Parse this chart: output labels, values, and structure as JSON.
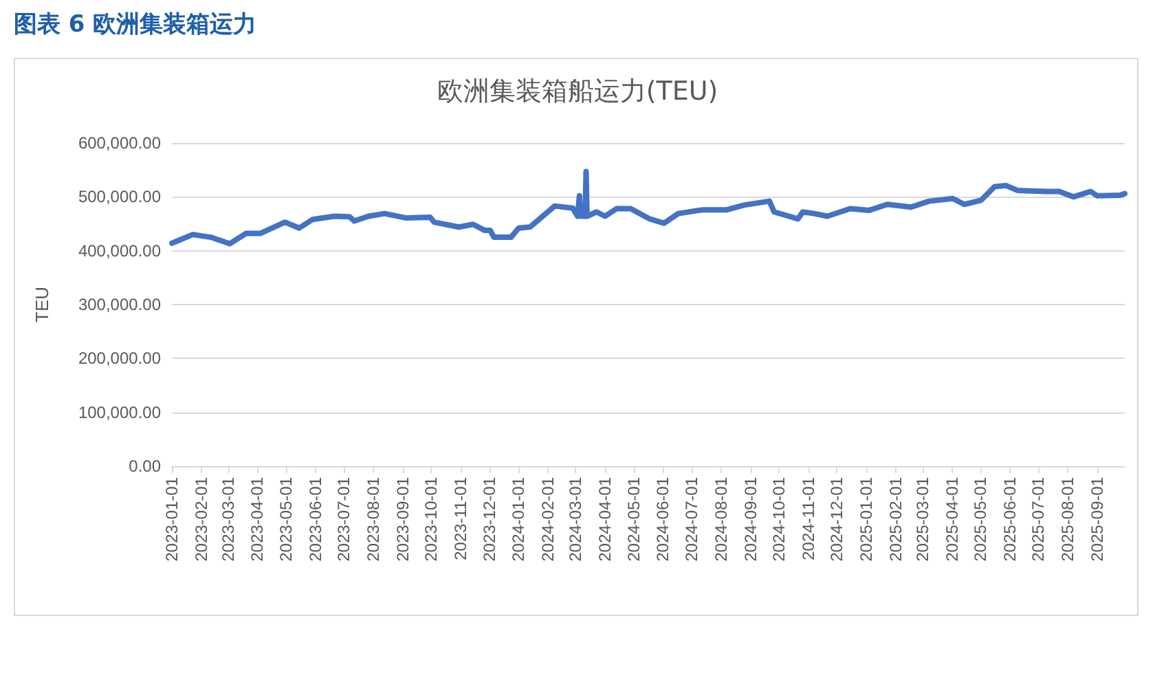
{
  "chart_data": {
    "type": "line",
    "title": "欧洲集装箱船运力(TEU)",
    "ylabel": "TEU",
    "annotations": [
      "图表 6 欧洲集装箱运力"
    ],
    "x": [
      "2023-01-01",
      "2023-01-08",
      "2023-01-23",
      "2023-02-11",
      "2023-03-03",
      "2023-03-20",
      "2023-04-04",
      "2023-04-30",
      "2023-05-15",
      "2023-05-29",
      "2023-06-21",
      "2023-07-07",
      "2023-07-12",
      "2023-07-27",
      "2023-08-13",
      "2023-09-04",
      "2023-09-30",
      "2023-10-04",
      "2023-10-30",
      "2023-11-14",
      "2023-11-26",
      "2023-12-02",
      "2023-12-06",
      "2023-12-24",
      "2024-01-01",
      "2024-01-13",
      "2024-02-08",
      "2024-02-27",
      "2024-03-03",
      "2024-03-05",
      "2024-03-06",
      "2024-03-11",
      "2024-03-12",
      "2024-03-13",
      "2024-03-23",
      "2024-04-01",
      "2024-04-13",
      "2024-04-28",
      "2024-05-18",
      "2024-06-02",
      "2024-06-17",
      "2024-07-13",
      "2024-08-07",
      "2024-08-26",
      "2024-09-21",
      "2024-09-26",
      "2024-10-21",
      "2024-10-26",
      "2024-11-07",
      "2024-11-21",
      "2024-12-15",
      "2025-01-04",
      "2025-01-23",
      "2025-02-17",
      "2025-03-08",
      "2025-04-02",
      "2025-04-14",
      "2025-05-02",
      "2025-05-16",
      "2025-05-28",
      "2025-06-09",
      "2025-07-09",
      "2025-07-23",
      "2025-08-07",
      "2025-08-25",
      "2025-09-01",
      "2025-09-25",
      "2025-09-30"
    ],
    "series": [
      {
        "color": "#4472c4",
        "values": [
          414000,
          419000,
          430000,
          425000,
          413000,
          432000,
          432000,
          453000,
          442000,
          458000,
          464000,
          463000,
          455000,
          464000,
          469000,
          461000,
          462000,
          453000,
          444000,
          449000,
          438000,
          438000,
          425000,
          425000,
          442000,
          444000,
          483000,
          479000,
          464000,
          502000,
          464000,
          464000,
          547000,
          464000,
          472000,
          464000,
          478000,
          478000,
          459000,
          451000,
          469000,
          476000,
          476000,
          485000,
          492000,
          472000,
          459000,
          472000,
          469000,
          464000,
          478000,
          475000,
          486000,
          481000,
          492000,
          497000,
          486000,
          494000,
          519000,
          521000,
          512000,
          510000,
          510000,
          500000,
          510000,
          502000,
          503000,
          506000
        ]
      }
    ],
    "xlim": [
      "2023-01-01",
      "2025-09-30"
    ],
    "xticks": [
      "2023-01-01",
      "2023-02-01",
      "2023-03-01",
      "2023-04-01",
      "2023-05-01",
      "2023-06-01",
      "2023-07-01",
      "2023-08-01",
      "2023-09-01",
      "2023-10-01",
      "2023-11-01",
      "2023-12-01",
      "2024-01-01",
      "2024-02-01",
      "2024-03-01",
      "2024-04-01",
      "2024-05-01",
      "2024-06-01",
      "2024-07-01",
      "2024-08-01",
      "2024-09-01",
      "2024-10-01",
      "2024-11-01",
      "2024-12-01",
      "2025-01-01",
      "2025-02-01",
      "2025-03-01",
      "2025-04-01",
      "2025-05-01",
      "2025-06-01",
      "2025-07-01",
      "2025-08-01",
      "2025-09-01"
    ],
    "ylim": [
      0,
      600000
    ],
    "yticks": [
      {
        "value": 0,
        "label": "0.00"
      },
      {
        "value": 100000,
        "label": "100,000.00"
      },
      {
        "value": 200000,
        "label": "200,000.00"
      },
      {
        "value": 300000,
        "label": "300,000.00"
      },
      {
        "value": 400000,
        "label": "400,000.00"
      },
      {
        "value": 500000,
        "label": "500,000.00"
      },
      {
        "value": 600000,
        "label": "600,000.00"
      }
    ],
    "grid": "y",
    "marker": "none",
    "line_style": "solid"
  }
}
